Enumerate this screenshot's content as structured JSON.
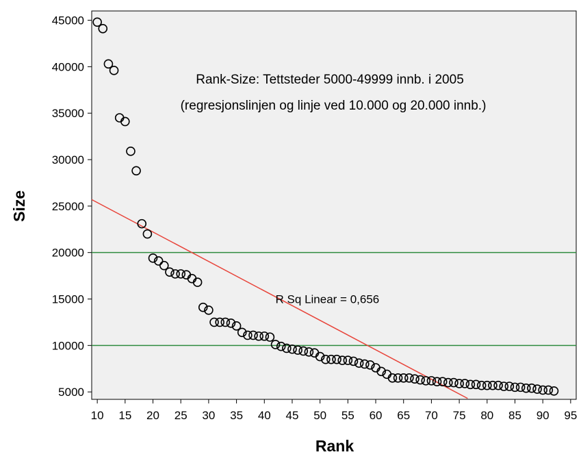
{
  "chart_data": {
    "type": "scatter",
    "title_line1": "Rank-Size: Tettsteder 5000-49999 innb. i 2005",
    "title_line2": "(regresjonslinjen og linje ved 10.000 og 20.000 innb.)",
    "xlabel": "Rank",
    "ylabel": "Size",
    "xlim": [
      9,
      96
    ],
    "ylim": [
      4200,
      46000
    ],
    "x_ticks": [
      10,
      15,
      20,
      25,
      30,
      35,
      40,
      45,
      50,
      55,
      60,
      65,
      70,
      75,
      80,
      85,
      90,
      95
    ],
    "y_ticks": [
      5000,
      10000,
      15000,
      20000,
      25000,
      30000,
      35000,
      40000,
      45000
    ],
    "grid": false,
    "reference_lines": [
      {
        "y": 20000,
        "color": "#2e8b3e"
      },
      {
        "y": 10000,
        "color": "#2e8b3e"
      }
    ],
    "regression": {
      "x_start": 9,
      "y_start": 25700,
      "x_end": 76.5,
      "y_end": 4300,
      "color": "#e8443a",
      "label": "R Sq Linear = 0,656",
      "label_x": 42,
      "label_y": 15000
    },
    "series": [
      {
        "points": [
          [
            10,
            44800
          ],
          [
            11,
            44100
          ],
          [
            12,
            40300
          ],
          [
            13,
            39600
          ],
          [
            14,
            34500
          ],
          [
            15,
            34100
          ],
          [
            16,
            30900
          ],
          [
            17,
            28800
          ],
          [
            18,
            23100
          ],
          [
            19,
            22000
          ],
          [
            20,
            19400
          ],
          [
            21,
            19100
          ],
          [
            22,
            18600
          ],
          [
            23,
            17900
          ],
          [
            24,
            17700
          ],
          [
            25,
            17700
          ],
          [
            26,
            17600
          ],
          [
            27,
            17200
          ],
          [
            28,
            16800
          ],
          [
            29,
            14100
          ],
          [
            30,
            13800
          ],
          [
            31,
            12500
          ],
          [
            32,
            12500
          ],
          [
            33,
            12500
          ],
          [
            34,
            12400
          ],
          [
            35,
            12100
          ],
          [
            36,
            11400
          ],
          [
            37,
            11100
          ],
          [
            38,
            11100
          ],
          [
            39,
            11000
          ],
          [
            40,
            11000
          ],
          [
            41,
            10900
          ],
          [
            42,
            10100
          ],
          [
            43,
            9900
          ],
          [
            44,
            9700
          ],
          [
            45,
            9600
          ],
          [
            46,
            9500
          ],
          [
            47,
            9400
          ],
          [
            48,
            9300
          ],
          [
            49,
            9200
          ],
          [
            50,
            8800
          ],
          [
            51,
            8500
          ],
          [
            52,
            8500
          ],
          [
            53,
            8500
          ],
          [
            54,
            8400
          ],
          [
            55,
            8400
          ],
          [
            56,
            8300
          ],
          [
            57,
            8100
          ],
          [
            58,
            8000
          ],
          [
            59,
            7900
          ],
          [
            60,
            7600
          ],
          [
            61,
            7200
          ],
          [
            62,
            6900
          ],
          [
            63,
            6500
          ],
          [
            64,
            6500
          ],
          [
            65,
            6500
          ],
          [
            66,
            6500
          ],
          [
            67,
            6400
          ],
          [
            68,
            6300
          ],
          [
            69,
            6200
          ],
          [
            70,
            6200
          ],
          [
            71,
            6100
          ],
          [
            72,
            6100
          ],
          [
            73,
            6000
          ],
          [
            74,
            6000
          ],
          [
            75,
            5900
          ],
          [
            76,
            5900
          ],
          [
            77,
            5800
          ],
          [
            78,
            5800
          ],
          [
            79,
            5700
          ],
          [
            80,
            5700
          ],
          [
            81,
            5700
          ],
          [
            82,
            5700
          ],
          [
            83,
            5600
          ],
          [
            84,
            5600
          ],
          [
            85,
            5500
          ],
          [
            86,
            5500
          ],
          [
            87,
            5400
          ],
          [
            88,
            5400
          ],
          [
            89,
            5300
          ],
          [
            90,
            5200
          ],
          [
            91,
            5200
          ],
          [
            92,
            5100
          ]
        ]
      }
    ],
    "colors": {
      "plot_background": "#f0f0f0",
      "marker_stroke": "#000000",
      "axis": "#000000"
    }
  }
}
